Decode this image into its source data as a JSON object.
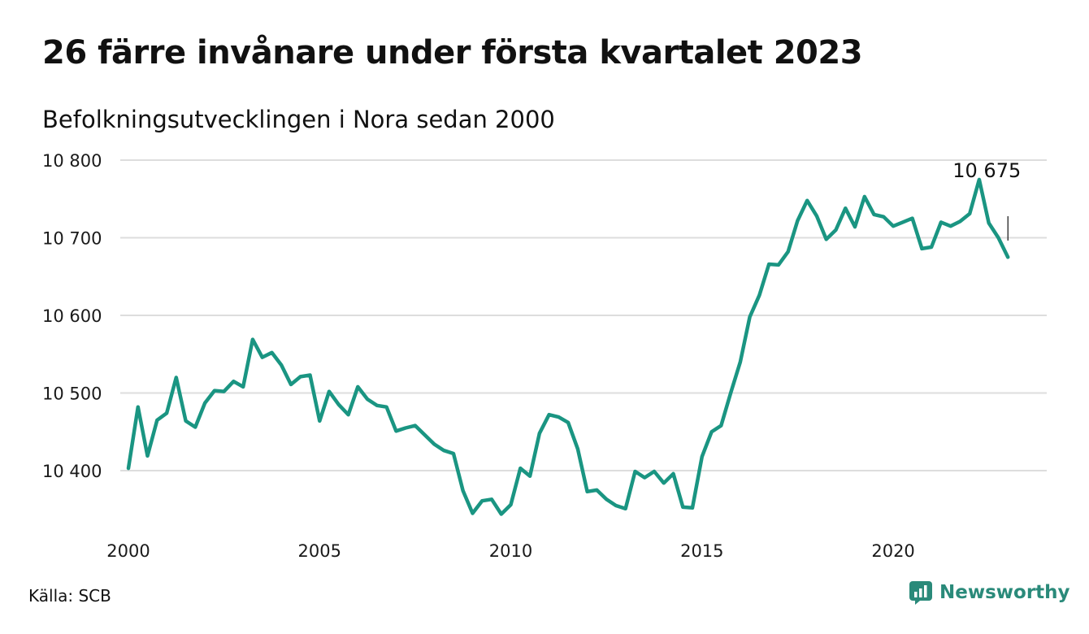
{
  "title": "26 färre invånare under första kvartalet 2023",
  "subtitle": "Befolkningsutvecklingen i Nora sedan 2000",
  "source": "Källa: SCB",
  "brand": {
    "name": "Newsworthy",
    "icon": "newsworthy-logo-icon",
    "color": "#2a8a7a"
  },
  "colors": {
    "line": "#1a9582",
    "grid": "#dddddd",
    "annotation_line": "#111111"
  },
  "chart_data": {
    "type": "line",
    "title": "26 färre invånare under första kvartalet 2023",
    "subtitle": "Befolkningsutvecklingen i Nora sedan 2000",
    "xlabel": "",
    "ylabel": "",
    "xlim": [
      2000,
      2023.25
    ],
    "ylim": [
      10345,
      10800
    ],
    "yticks": [
      10400,
      10500,
      10600,
      10700,
      10800
    ],
    "ytick_labels": [
      "10 400",
      "10 500",
      "10 600",
      "10 700",
      "10 800"
    ],
    "xticks": [
      2000,
      2005,
      2010,
      2015,
      2020
    ],
    "xtick_labels": [
      "2000",
      "2005",
      "2010",
      "2015",
      "2020"
    ],
    "grid": "horizontal",
    "series": [
      {
        "name": "",
        "x": [
          2000.0,
          2000.25,
          2000.5,
          2000.75,
          2001.0,
          2001.25,
          2001.5,
          2001.75,
          2002.0,
          2002.25,
          2002.5,
          2002.75,
          2003.0,
          2003.25,
          2003.5,
          2003.75,
          2004.0,
          2004.25,
          2004.5,
          2004.75,
          2005.0,
          2005.25,
          2005.5,
          2005.75,
          2006.0,
          2006.25,
          2006.5,
          2006.75,
          2007.0,
          2007.25,
          2007.5,
          2007.75,
          2008.0,
          2008.25,
          2008.5,
          2008.75,
          2009.0,
          2009.25,
          2009.5,
          2009.75,
          2010.0,
          2010.25,
          2010.5,
          2010.75,
          2011.0,
          2011.25,
          2011.5,
          2011.75,
          2012.0,
          2012.25,
          2012.5,
          2012.75,
          2013.0,
          2013.25,
          2013.5,
          2013.75,
          2014.0,
          2014.25,
          2014.5,
          2014.75,
          2015.0,
          2015.25,
          2015.5,
          2015.75,
          2016.0,
          2016.25,
          2016.5,
          2016.75,
          2017.0,
          2017.25,
          2017.5,
          2017.75,
          2018.0,
          2018.25,
          2018.5,
          2018.75,
          2019.0,
          2019.25,
          2019.5,
          2019.75,
          2020.0,
          2020.25,
          2020.5,
          2020.75,
          2021.0,
          2021.25,
          2021.5,
          2021.75,
          2022.0,
          2022.25,
          2022.5,
          2022.75,
          2023.0
        ],
        "values": [
          10403,
          10482,
          10419,
          10465,
          10474,
          10520,
          10464,
          10456,
          10487,
          10503,
          10502,
          10515,
          10508,
          10569,
          10546,
          10552,
          10536,
          10511,
          10521,
          10523,
          10464,
          10502,
          10485,
          10472,
          10508,
          10492,
          10484,
          10482,
          10451,
          10455,
          10458,
          10446,
          10434,
          10426,
          10422,
          10374,
          10345,
          10361,
          10363,
          10344,
          10356,
          10403,
          10393,
          10448,
          10472,
          10469,
          10462,
          10428,
          10373,
          10375,
          10363,
          10355,
          10351,
          10399,
          10391,
          10399,
          10384,
          10396,
          10353,
          10352,
          10418,
          10450,
          10458,
          10500,
          10540,
          10598,
          10626,
          10666,
          10665,
          10682,
          10722,
          10748,
          10728,
          10698,
          10710,
          10738,
          10714,
          10753,
          10730,
          10727,
          10715,
          10720,
          10725,
          10686,
          10688,
          10720,
          10715,
          10721,
          10731,
          10775,
          10719,
          10700,
          10675
        ]
      }
    ],
    "annotations": [
      {
        "text": "10 675",
        "x": 2023.0,
        "y": 10675
      }
    ]
  }
}
